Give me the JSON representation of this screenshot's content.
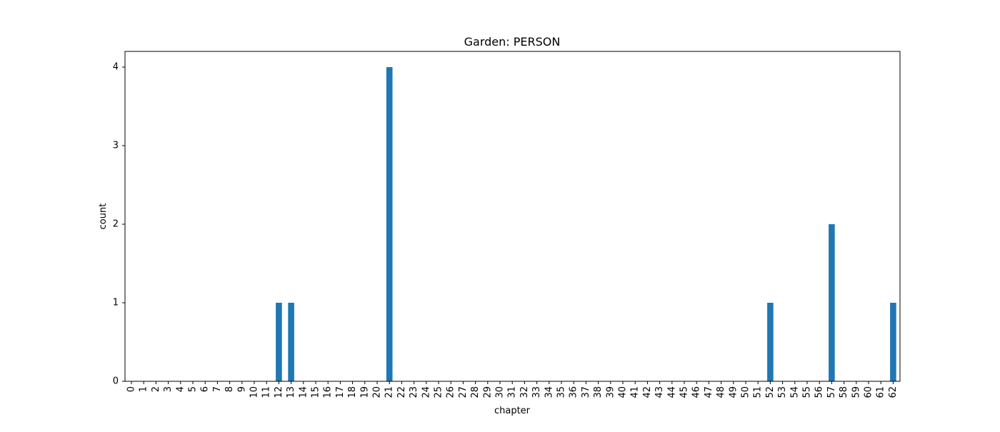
{
  "chart_data": {
    "type": "bar",
    "title": "Garden: PERSON",
    "xlabel": "chapter",
    "ylabel": "count",
    "categories": [
      "0",
      "1",
      "2",
      "3",
      "4",
      "5",
      "6",
      "7",
      "8",
      "9",
      "10",
      "11",
      "12",
      "13",
      "14",
      "15",
      "16",
      "17",
      "18",
      "19",
      "20",
      "21",
      "22",
      "23",
      "24",
      "25",
      "26",
      "27",
      "28",
      "29",
      "30",
      "31",
      "32",
      "33",
      "34",
      "35",
      "36",
      "37",
      "38",
      "39",
      "40",
      "41",
      "42",
      "43",
      "44",
      "45",
      "46",
      "47",
      "48",
      "49",
      "50",
      "51",
      "52",
      "53",
      "54",
      "55",
      "56",
      "57",
      "58",
      "59",
      "60",
      "61",
      "62"
    ],
    "values": [
      0,
      0,
      0,
      0,
      0,
      0,
      0,
      0,
      0,
      0,
      0,
      0,
      1,
      1,
      0,
      0,
      0,
      0,
      0,
      0,
      0,
      4,
      0,
      0,
      0,
      0,
      0,
      0,
      0,
      0,
      0,
      0,
      0,
      0,
      0,
      0,
      0,
      0,
      0,
      0,
      0,
      0,
      0,
      0,
      0,
      0,
      0,
      0,
      0,
      0,
      0,
      0,
      1,
      0,
      0,
      0,
      0,
      2,
      0,
      0,
      0,
      0,
      1
    ],
    "ylim": [
      0,
      4.2
    ],
    "yticks": [
      "0",
      "1",
      "2",
      "3",
      "4"
    ],
    "bar_color": "#1f77b4",
    "grid": false,
    "legend": "none"
  }
}
